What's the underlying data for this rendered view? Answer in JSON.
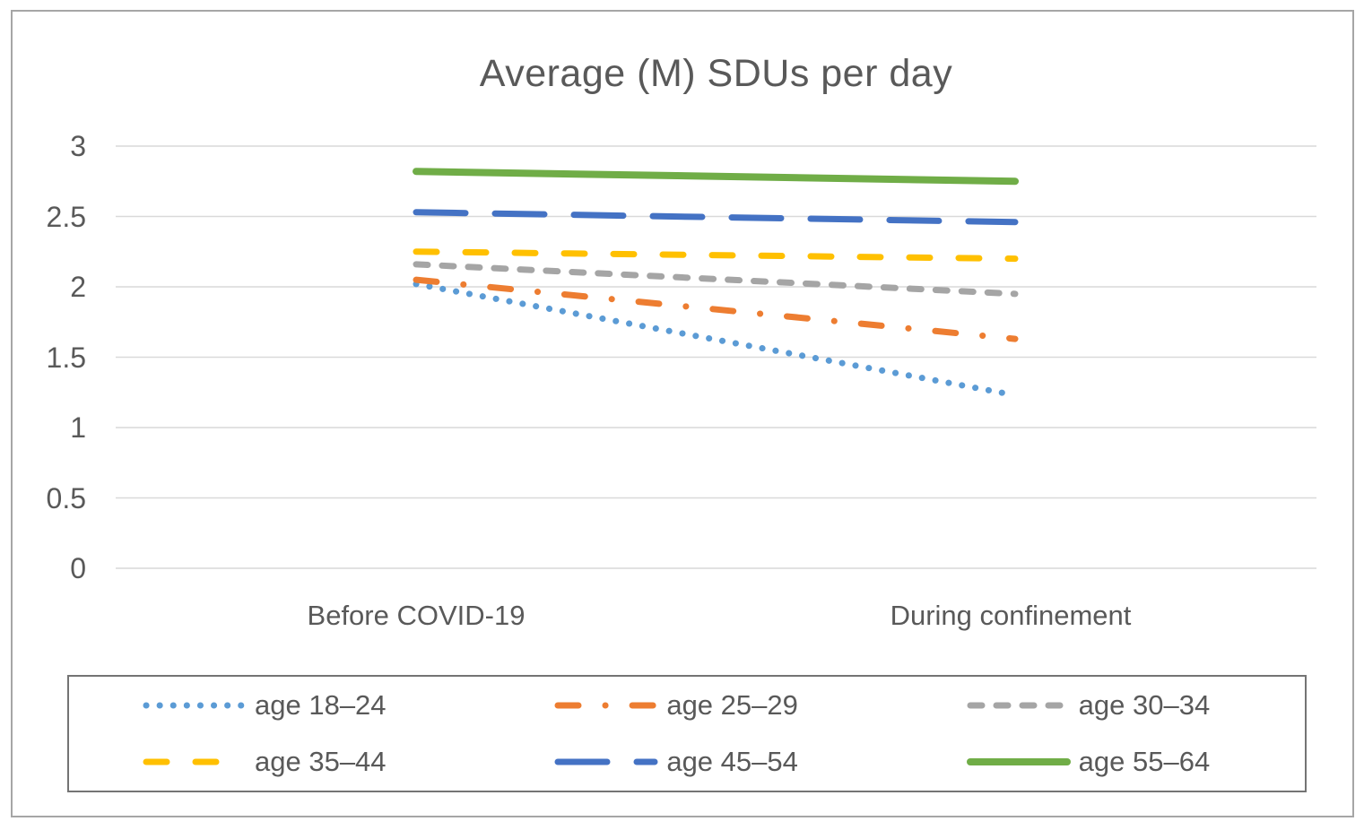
{
  "chart_data": {
    "type": "line",
    "title": "Average (M) SDUs per day",
    "categories": [
      "Before COVID-19",
      "During confinement"
    ],
    "y_ticks": [
      "3",
      "2.5",
      "2",
      "1.5",
      "1",
      "0.5",
      "0"
    ],
    "ylim": [
      0,
      3
    ],
    "grid": true,
    "legend_position": "bottom",
    "text_color": "#595959",
    "gridline_color": "#d9d9d9",
    "series": [
      {
        "name": "age 18–24",
        "color": "#5B9BD5",
        "line_style": "dot",
        "values": [
          2.02,
          1.23
        ]
      },
      {
        "name": "age 25–29",
        "color": "#ED7D31",
        "line_style": "dash-dot",
        "values": [
          2.05,
          1.63
        ]
      },
      {
        "name": "age 30–34",
        "color": "#A5A5A5",
        "line_style": "short-dash",
        "values": [
          2.16,
          1.95
        ]
      },
      {
        "name": "age 35–44",
        "color": "#FFC000",
        "line_style": "dash",
        "values": [
          2.25,
          2.2
        ]
      },
      {
        "name": "age 45–54",
        "color": "#4472C4",
        "line_style": "long-dash",
        "values": [
          2.53,
          2.46
        ]
      },
      {
        "name": "age 55–64",
        "color": "#70AD47",
        "line_style": "solid",
        "values": [
          2.82,
          2.75
        ]
      }
    ]
  }
}
